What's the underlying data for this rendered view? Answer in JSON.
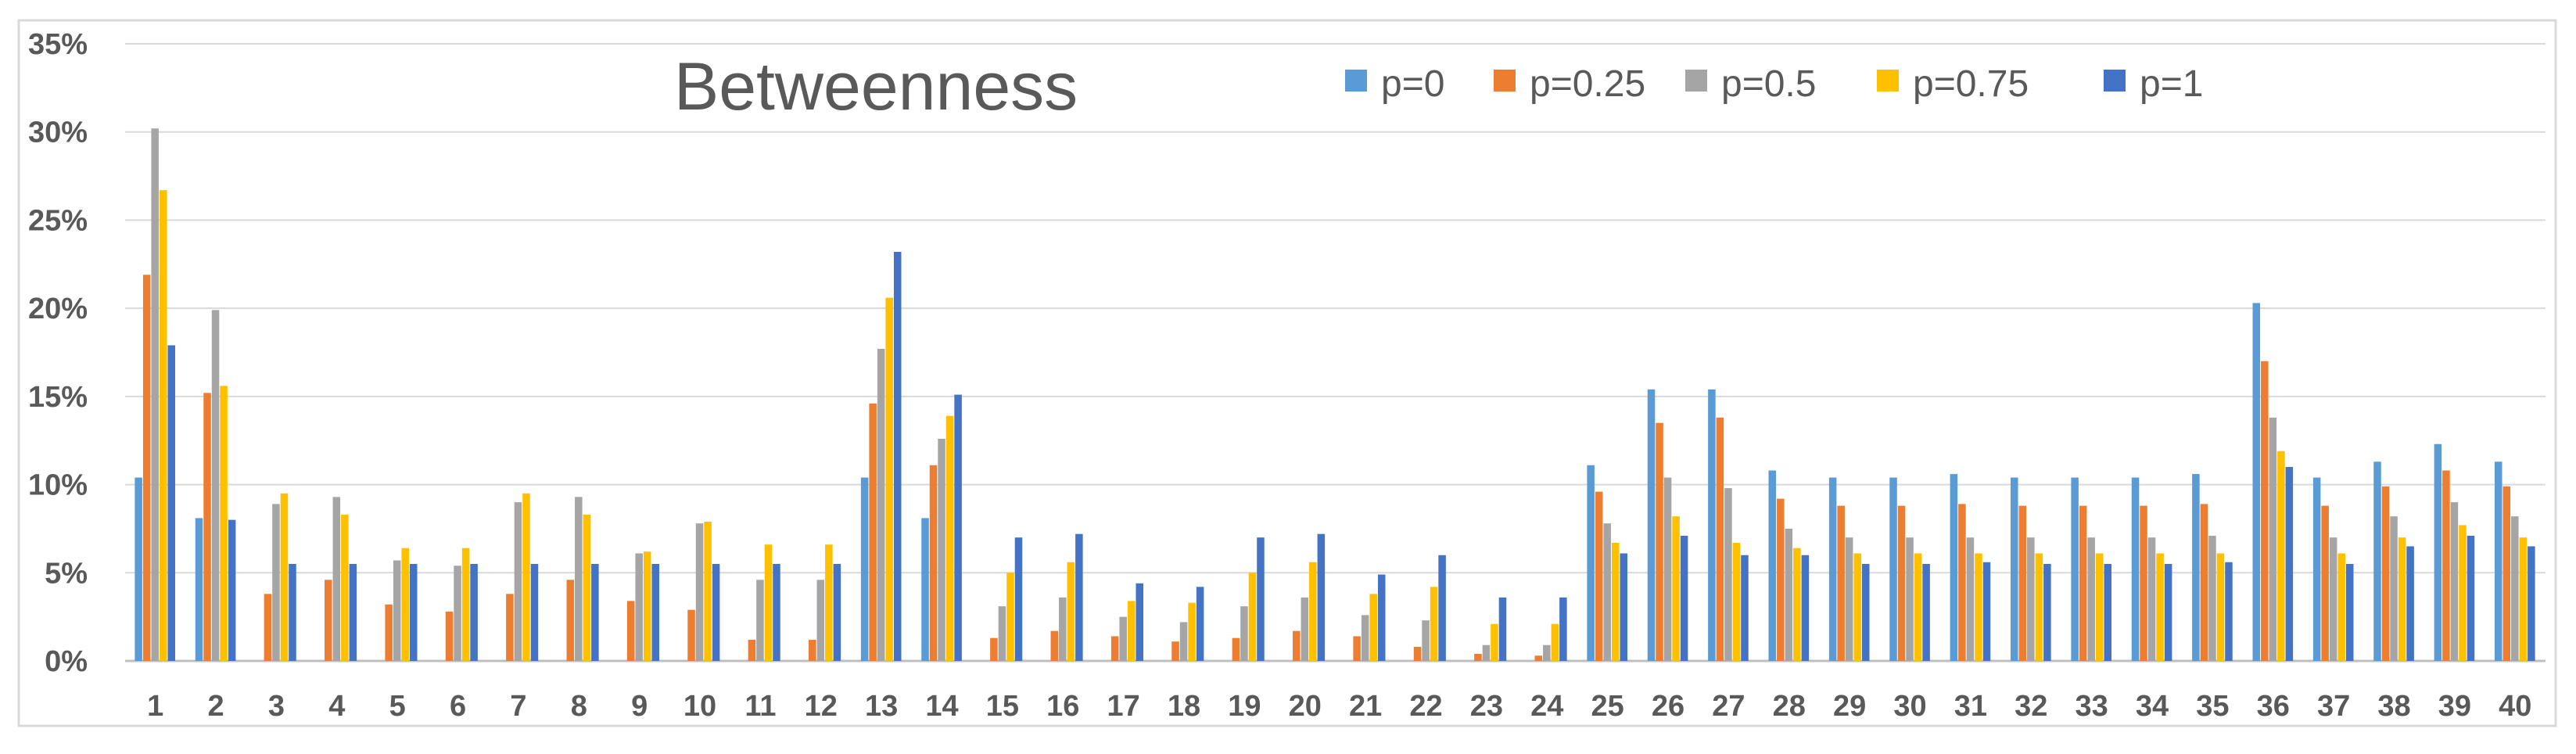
{
  "chart_data": {
    "type": "bar",
    "title": "Betweenness",
    "xlabel": "",
    "ylabel": "",
    "ylim": [
      0,
      0.35
    ],
    "ytick_labels": [
      "0%",
      "5%",
      "10%",
      "15%",
      "20%",
      "25%",
      "30%",
      "35%"
    ],
    "grid": true,
    "legend_position": "top-right",
    "categories": [
      "1",
      "2",
      "3",
      "4",
      "5",
      "6",
      "7",
      "8",
      "9",
      "10",
      "11",
      "12",
      "13",
      "14",
      "15",
      "16",
      "17",
      "18",
      "19",
      "20",
      "21",
      "22",
      "23",
      "24",
      "25",
      "26",
      "27",
      "28",
      "29",
      "30",
      "31",
      "32",
      "33",
      "34",
      "35",
      "36",
      "37",
      "38",
      "39",
      "40"
    ],
    "series": [
      {
        "name": "p=0",
        "color": "#5B9BD5",
        "values": [
          0.104,
          0.081,
          0,
          0,
          0,
          0,
          0,
          0,
          0,
          0,
          0,
          0,
          0.104,
          0.081,
          0,
          0,
          0,
          0,
          0,
          0,
          0,
          0,
          0,
          0,
          0.111,
          0.154,
          0.154,
          0.108,
          0.104,
          0.104,
          0.106,
          0.104,
          0.104,
          0.104,
          0.106,
          0.203,
          0.104,
          0.113,
          0.123,
          0.113
        ]
      },
      {
        "name": "p=0.25",
        "color": "#ED7D31",
        "values": [
          0.219,
          0.152,
          0.038,
          0.046,
          0.032,
          0.028,
          0.038,
          0.046,
          0.034,
          0.029,
          0.012,
          0.012,
          0.146,
          0.111,
          0.013,
          0.017,
          0.014,
          0.011,
          0.013,
          0.017,
          0.014,
          0.008,
          0.004,
          0.003,
          0.096,
          0.135,
          0.138,
          0.092,
          0.088,
          0.088,
          0.089,
          0.088,
          0.088,
          0.088,
          0.089,
          0.17,
          0.088,
          0.099,
          0.108,
          0.099
        ]
      },
      {
        "name": "p=0.5",
        "color": "#A5A5A5",
        "values": [
          0.302,
          0.199,
          0.089,
          0.093,
          0.057,
          0.054,
          0.09,
          0.093,
          0.061,
          0.078,
          0.046,
          0.046,
          0.177,
          0.126,
          0.031,
          0.036,
          0.025,
          0.022,
          0.031,
          0.036,
          0.026,
          0.023,
          0.009,
          0.009,
          0.078,
          0.104,
          0.098,
          0.075,
          0.07,
          0.07,
          0.07,
          0.07,
          0.07,
          0.07,
          0.071,
          0.138,
          0.07,
          0.082,
          0.09,
          0.082
        ]
      },
      {
        "name": "p=0.75",
        "color": "#FFC000",
        "values": [
          0.267,
          0.156,
          0.095,
          0.083,
          0.064,
          0.064,
          0.095,
          0.083,
          0.062,
          0.079,
          0.066,
          0.066,
          0.206,
          0.139,
          0.05,
          0.056,
          0.034,
          0.033,
          0.05,
          0.056,
          0.038,
          0.042,
          0.021,
          0.021,
          0.067,
          0.082,
          0.067,
          0.064,
          0.061,
          0.061,
          0.061,
          0.061,
          0.061,
          0.061,
          0.061,
          0.119,
          0.061,
          0.07,
          0.077,
          0.07
        ]
      },
      {
        "name": "p=1",
        "color": "#4472C4",
        "values": [
          0.179,
          0.08,
          0.055,
          0.055,
          0.055,
          0.055,
          0.055,
          0.055,
          0.055,
          0.055,
          0.055,
          0.055,
          0.232,
          0.151,
          0.07,
          0.072,
          0.044,
          0.042,
          0.07,
          0.072,
          0.049,
          0.06,
          0.036,
          0.036,
          0.061,
          0.071,
          0.06,
          0.06,
          0.055,
          0.055,
          0.056,
          0.055,
          0.055,
          0.055,
          0.056,
          0.11,
          0.055,
          0.065,
          0.071,
          0.065
        ]
      }
    ]
  }
}
